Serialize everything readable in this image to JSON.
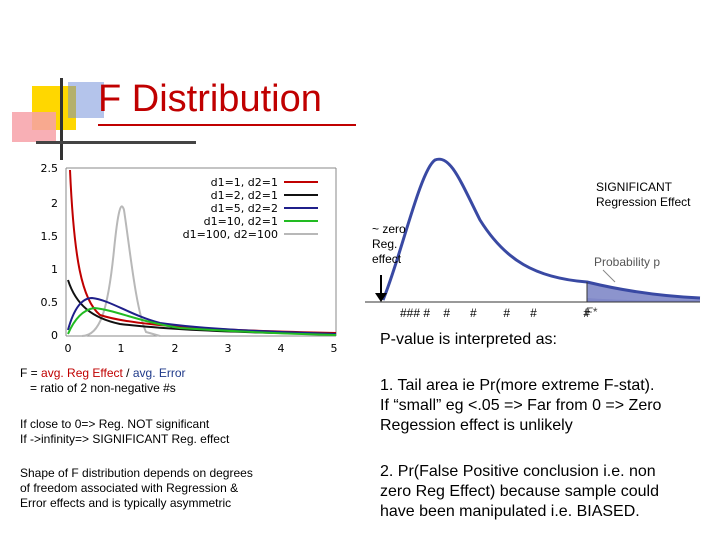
{
  "slide": {
    "title": "F Distribution"
  },
  "left_chart": {
    "y_ticks": [
      "2.5",
      "2",
      "1.5",
      "1",
      "0.5",
      "0"
    ],
    "x_ticks": [
      "0",
      "1",
      "2",
      "3",
      "4",
      "5"
    ],
    "legend": [
      {
        "label": "d1=1, d2=1",
        "color": "#c00000"
      },
      {
        "label": "d1=2, d2=1",
        "color": "#000000"
      },
      {
        "label": "d1=5, d2=2",
        "color": "#1f1f8a"
      },
      {
        "label": "d1=10, d2=1",
        "color": "#22bb22"
      },
      {
        "label": "d1=100, d2=100",
        "color": "#b0b0b0"
      }
    ]
  },
  "right_chart": {
    "significant_label_line1": "SIGNIFICANT",
    "significant_label_line2": "Regression Effect",
    "zero_label_line1": "~ zero",
    "zero_label_line2": "Reg.",
    "zero_label_line3": "effect",
    "probability_label": "Probability p",
    "fstar_label": "F*",
    "hash_marks": "### #    #      #        #      #              #",
    "fill_color": "#8088c8",
    "curve_color": "#3949a3"
  },
  "pvalue": {
    "heading": "P-value is interpreted as:",
    "point1_line1": "1. Tail area ie Pr(more extreme F-stat).",
    "point1_line2": "If “small” eg <.05 => Far from 0 => Zero",
    "point1_line3": "Regession effect is unlikely",
    "point2_line1": "2. Pr(False Positive conclusion i.e. non",
    "point2_line2": "zero Reg Effect) because sample could",
    "point2_line3": "have been manipulated i.e. BIASED."
  },
  "left_text": {
    "f_prefix": "F = ",
    "f_numerator": "avg. Reg Effect",
    "f_slash": " / ",
    "f_denominator": "avg. Error",
    "ratio": "= ratio of 2 non-negative #s",
    "close_zero": "If close to 0=> Reg. NOT significant",
    "infinity": "If ->infinity=> SIGNIFICANT Reg. effect",
    "shape_line1": "Shape of F distribution depends on degrees",
    "shape_line2": "of freedom associated with Regression &",
    "shape_line3": "Error effects and is typically asymmetric"
  }
}
